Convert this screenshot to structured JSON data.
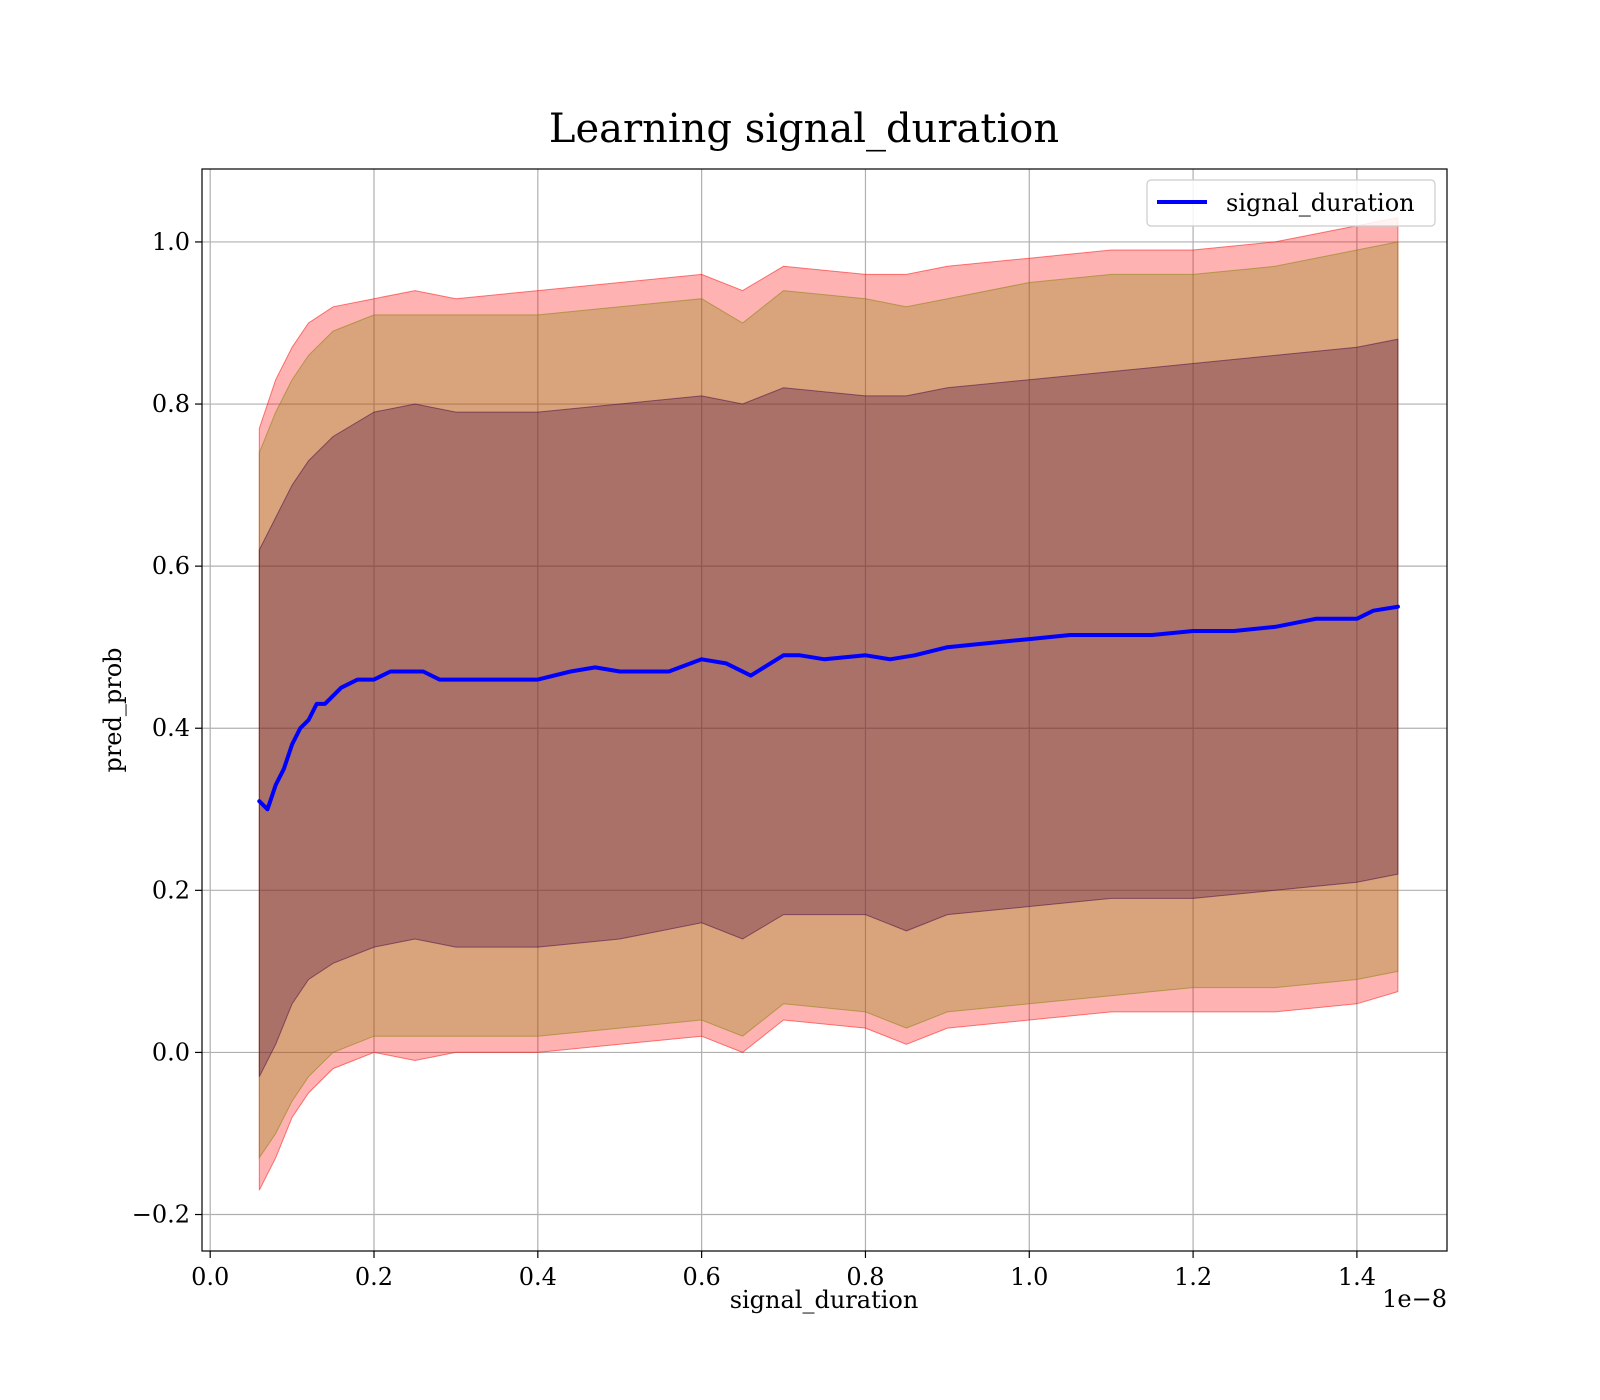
{
  "chart_data": {
    "type": "line",
    "title": "Learning signal_duration",
    "xlabel": "signal_duration",
    "ylabel": "pred_prob",
    "x_offset_text": "1e−8",
    "xlim": [
      -0.01,
      1.51
    ],
    "ylim": [
      -0.245,
      1.09
    ],
    "x_ticks": [
      0.0,
      0.2,
      0.4,
      0.6,
      0.8,
      1.0,
      1.2,
      1.4
    ],
    "x_tick_labels": [
      "0.0",
      "0.2",
      "0.4",
      "0.6",
      "0.8",
      "1.0",
      "1.2",
      "1.4"
    ],
    "y_ticks": [
      -0.2,
      0.0,
      0.2,
      0.4,
      0.6,
      0.8,
      1.0
    ],
    "y_tick_labels": [
      "−0.2",
      "0.0",
      "0.2",
      "0.4",
      "0.6",
      "0.8",
      "1.0"
    ],
    "grid": true,
    "legend_position": "upper right",
    "series": [
      {
        "name": "signal_duration",
        "color": "#0000ff",
        "x": [
          0.06,
          0.07,
          0.08,
          0.09,
          0.1,
          0.11,
          0.12,
          0.13,
          0.14,
          0.16,
          0.18,
          0.2,
          0.22,
          0.24,
          0.26,
          0.28,
          0.3,
          0.33,
          0.36,
          0.4,
          0.44,
          0.47,
          0.5,
          0.53,
          0.56,
          0.6,
          0.63,
          0.66,
          0.7,
          0.72,
          0.75,
          0.8,
          0.83,
          0.86,
          0.9,
          0.95,
          1.0,
          1.05,
          1.1,
          1.15,
          1.2,
          1.25,
          1.3,
          1.35,
          1.4,
          1.42,
          1.45
        ],
        "y": [
          0.31,
          0.3,
          0.33,
          0.35,
          0.38,
          0.4,
          0.41,
          0.43,
          0.43,
          0.45,
          0.46,
          0.46,
          0.47,
          0.47,
          0.47,
          0.46,
          0.46,
          0.46,
          0.46,
          0.46,
          0.47,
          0.475,
          0.47,
          0.47,
          0.47,
          0.485,
          0.48,
          0.465,
          0.49,
          0.49,
          0.485,
          0.49,
          0.485,
          0.49,
          0.5,
          0.505,
          0.51,
          0.515,
          0.515,
          0.515,
          0.52,
          0.52,
          0.525,
          0.535,
          0.535,
          0.545,
          0.55
        ]
      }
    ],
    "bands": [
      {
        "kind": "outer",
        "color": "#ff0000",
        "opacity": 0.3,
        "x": [
          0.06,
          0.08,
          0.1,
          0.12,
          0.15,
          0.2,
          0.25,
          0.3,
          0.4,
          0.5,
          0.6,
          0.65,
          0.7,
          0.8,
          0.85,
          0.9,
          1.0,
          1.1,
          1.2,
          1.3,
          1.4,
          1.45
        ],
        "upper": [
          0.77,
          0.83,
          0.87,
          0.9,
          0.92,
          0.93,
          0.94,
          0.93,
          0.94,
          0.95,
          0.96,
          0.94,
          0.97,
          0.96,
          0.96,
          0.97,
          0.98,
          0.99,
          0.99,
          1.0,
          1.02,
          1.03
        ],
        "lower": [
          -0.17,
          -0.13,
          -0.08,
          -0.05,
          -0.02,
          0.0,
          -0.01,
          0.0,
          0.0,
          0.01,
          0.02,
          0.0,
          0.04,
          0.03,
          0.01,
          0.03,
          0.04,
          0.05,
          0.05,
          0.05,
          0.06,
          0.075
        ]
      },
      {
        "kind": "middle",
        "color": "#808000",
        "opacity": 0.3,
        "x": [
          0.06,
          0.08,
          0.1,
          0.12,
          0.15,
          0.2,
          0.25,
          0.3,
          0.4,
          0.5,
          0.6,
          0.65,
          0.7,
          0.8,
          0.85,
          0.9,
          1.0,
          1.1,
          1.2,
          1.3,
          1.4,
          1.45
        ],
        "upper": [
          0.74,
          0.79,
          0.83,
          0.86,
          0.89,
          0.91,
          0.91,
          0.91,
          0.91,
          0.92,
          0.93,
          0.9,
          0.94,
          0.93,
          0.92,
          0.93,
          0.95,
          0.96,
          0.96,
          0.97,
          0.99,
          1.0
        ],
        "lower": [
          -0.13,
          -0.1,
          -0.06,
          -0.03,
          0.0,
          0.02,
          0.02,
          0.02,
          0.02,
          0.03,
          0.04,
          0.02,
          0.06,
          0.05,
          0.03,
          0.05,
          0.06,
          0.07,
          0.08,
          0.08,
          0.09,
          0.1
        ]
      },
      {
        "kind": "inner",
        "color": "#400040",
        "opacity": 0.3,
        "x": [
          0.06,
          0.08,
          0.1,
          0.12,
          0.15,
          0.2,
          0.25,
          0.3,
          0.4,
          0.5,
          0.6,
          0.65,
          0.7,
          0.8,
          0.85,
          0.9,
          1.0,
          1.1,
          1.2,
          1.3,
          1.4,
          1.45
        ],
        "upper": [
          0.62,
          0.66,
          0.7,
          0.73,
          0.76,
          0.79,
          0.8,
          0.79,
          0.79,
          0.8,
          0.81,
          0.8,
          0.82,
          0.81,
          0.81,
          0.82,
          0.83,
          0.84,
          0.85,
          0.86,
          0.87,
          0.88
        ],
        "lower": [
          -0.03,
          0.01,
          0.06,
          0.09,
          0.11,
          0.13,
          0.14,
          0.13,
          0.13,
          0.14,
          0.16,
          0.14,
          0.17,
          0.17,
          0.15,
          0.17,
          0.18,
          0.19,
          0.19,
          0.2,
          0.21,
          0.22
        ]
      }
    ]
  }
}
